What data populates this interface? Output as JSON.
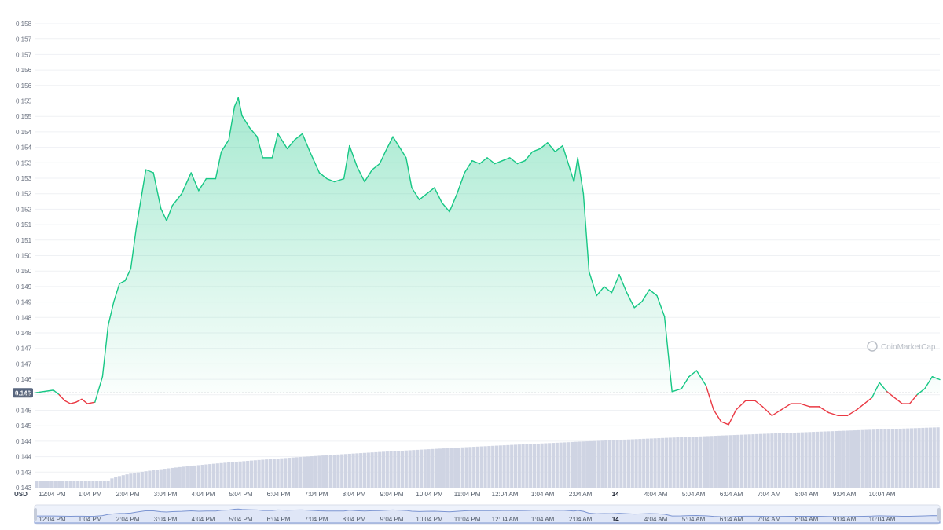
{
  "chart_data": {
    "type": "line",
    "currency_label": "USD",
    "watermark": "CoinMarketCap",
    "y_axis_ticks": [
      "0.158",
      "0.157",
      "0.157",
      "0.156",
      "0.156",
      "0.155",
      "0.155",
      "0.154",
      "0.154",
      "0.153",
      "0.153",
      "0.152",
      "0.152",
      "0.151",
      "0.151",
      "0.150",
      "0.150",
      "0.149",
      "0.149",
      "0.148",
      "0.148",
      "0.147",
      "0.147",
      "0.146",
      "0.146",
      "0.145",
      "0.145",
      "0.144",
      "0.144",
      "0.143",
      "0.143"
    ],
    "ylim": [
      0.1428,
      0.1583
    ],
    "reference_price": 0.14596,
    "reference_label": "0.146",
    "x_tick_labels": [
      "12:04 PM",
      "1:04 PM",
      "2:04 PM",
      "3:04 PM",
      "4:04 PM",
      "5:04 PM",
      "6:04 PM",
      "7:04 PM",
      "8:04 PM",
      "9:04 PM",
      "10:04 PM",
      "11:04 PM",
      "12:04 AM",
      "1:04 AM",
      "2:04 AM",
      "14",
      "4:04 AM",
      "5:04 AM",
      "6:04 AM",
      "7:04 AM",
      "8:04 AM",
      "9:04 AM",
      "10:04 AM"
    ],
    "x_tick_hours": [
      0.07,
      1.07,
      2.07,
      3.07,
      4.07,
      5.07,
      6.07,
      7.07,
      8.07,
      9.07,
      10.07,
      11.07,
      12.07,
      13.07,
      14.07,
      15.0,
      16.07,
      17.07,
      18.07,
      19.07,
      20.07,
      21.07,
      22.07
    ],
    "x_range_hours": [
      -0.4,
      23.6
    ],
    "series": [
      {
        "type": "line",
        "up_color": "#16c784",
        "down_color": "#ea3943",
        "points": [
          [
            -0.4,
            0.14596
          ],
          [
            0.1,
            0.14605
          ],
          [
            0.25,
            0.1459
          ],
          [
            0.4,
            0.1457
          ],
          [
            0.55,
            0.1456
          ],
          [
            0.7,
            0.14565
          ],
          [
            0.85,
            0.14575
          ],
          [
            1.0,
            0.1456
          ],
          [
            1.2,
            0.14565
          ],
          [
            1.4,
            0.1465
          ],
          [
            1.55,
            0.1482
          ],
          [
            1.7,
            0.149
          ],
          [
            1.85,
            0.1496
          ],
          [
            2.0,
            0.1497
          ],
          [
            2.15,
            0.1501
          ],
          [
            2.3,
            0.1515
          ],
          [
            2.55,
            0.1534
          ],
          [
            2.75,
            0.1533
          ],
          [
            2.95,
            0.1521
          ],
          [
            3.1,
            0.1517
          ],
          [
            3.25,
            0.1522
          ],
          [
            3.5,
            0.1526
          ],
          [
            3.75,
            0.1533
          ],
          [
            3.95,
            0.1527
          ],
          [
            4.15,
            0.1531
          ],
          [
            4.4,
            0.1531
          ],
          [
            4.55,
            0.154
          ],
          [
            4.75,
            0.1544
          ],
          [
            4.9,
            0.1555
          ],
          [
            5.0,
            0.1558
          ],
          [
            5.1,
            0.1552
          ],
          [
            5.3,
            0.1548
          ],
          [
            5.5,
            0.1545
          ],
          [
            5.65,
            0.1538
          ],
          [
            5.9,
            0.1538
          ],
          [
            6.05,
            0.1546
          ],
          [
            6.3,
            0.1541
          ],
          [
            6.5,
            0.1544
          ],
          [
            6.7,
            0.1546
          ],
          [
            6.9,
            0.154
          ],
          [
            7.15,
            0.1533
          ],
          [
            7.35,
            0.1531
          ],
          [
            7.55,
            0.153
          ],
          [
            7.8,
            0.1531
          ],
          [
            7.95,
            0.1542
          ],
          [
            8.15,
            0.1535
          ],
          [
            8.35,
            0.153
          ],
          [
            8.55,
            0.1534
          ],
          [
            8.75,
            0.1536
          ],
          [
            8.9,
            0.154
          ],
          [
            9.1,
            0.1545
          ],
          [
            9.3,
            0.1541
          ],
          [
            9.45,
            0.1538
          ],
          [
            9.6,
            0.1528
          ],
          [
            9.8,
            0.1524
          ],
          [
            10.0,
            0.1526
          ],
          [
            10.2,
            0.1528
          ],
          [
            10.4,
            0.1523
          ],
          [
            10.6,
            0.152
          ],
          [
            10.8,
            0.1526
          ],
          [
            11.0,
            0.1533
          ],
          [
            11.2,
            0.1537
          ],
          [
            11.4,
            0.1536
          ],
          [
            11.6,
            0.1538
          ],
          [
            11.8,
            0.1536
          ],
          [
            12.0,
            0.1537
          ],
          [
            12.2,
            0.1538
          ],
          [
            12.4,
            0.1536
          ],
          [
            12.6,
            0.1537
          ],
          [
            12.8,
            0.154
          ],
          [
            13.0,
            0.1541
          ],
          [
            13.2,
            0.1543
          ],
          [
            13.4,
            0.154
          ],
          [
            13.6,
            0.1542
          ],
          [
            13.8,
            0.1534
          ],
          [
            13.9,
            0.153
          ],
          [
            14.0,
            0.1538
          ],
          [
            14.15,
            0.1526
          ],
          [
            14.3,
            0.15
          ],
          [
            14.5,
            0.1492
          ],
          [
            14.7,
            0.1495
          ],
          [
            14.9,
            0.1493
          ],
          [
            15.1,
            0.1499
          ],
          [
            15.3,
            0.1493
          ],
          [
            15.5,
            0.1488
          ],
          [
            15.7,
            0.149
          ],
          [
            15.9,
            0.1494
          ],
          [
            16.1,
            0.1492
          ],
          [
            16.3,
            0.1485
          ],
          [
            16.5,
            0.146
          ],
          [
            16.75,
            0.1461
          ],
          [
            16.95,
            0.1465
          ],
          [
            17.15,
            0.1467
          ],
          [
            17.4,
            0.1462
          ],
          [
            17.6,
            0.1454
          ],
          [
            17.8,
            0.145
          ],
          [
            18.0,
            0.1449
          ],
          [
            18.2,
            0.1454
          ],
          [
            18.45,
            0.1457
          ],
          [
            18.7,
            0.1457
          ],
          [
            18.9,
            0.1455
          ],
          [
            19.15,
            0.1452
          ],
          [
            19.4,
            0.1454
          ],
          [
            19.65,
            0.1456
          ],
          [
            19.9,
            0.1456
          ],
          [
            20.15,
            0.1455
          ],
          [
            20.4,
            0.1455
          ],
          [
            20.65,
            0.1453
          ],
          [
            20.9,
            0.1452
          ],
          [
            21.15,
            0.1452
          ],
          [
            21.4,
            0.1454
          ],
          [
            21.6,
            0.1456
          ],
          [
            21.8,
            0.1458
          ],
          [
            22.0,
            0.1463
          ],
          [
            22.2,
            0.146
          ],
          [
            22.4,
            0.1458
          ],
          [
            22.6,
            0.1456
          ],
          [
            22.8,
            0.1456
          ],
          [
            23.0,
            0.1459
          ],
          [
            23.2,
            0.1461
          ],
          [
            23.4,
            0.1465
          ],
          [
            23.6,
            0.1464
          ]
        ]
      },
      {
        "type": "bar",
        "name": "volume",
        "color": "#cfd4e3",
        "values_start": 0.14302,
        "values_end": 0.14481,
        "x_start": -0.4,
        "x_end": 23.6,
        "step_hours": 0.1
      }
    ],
    "grid": true,
    "legend": "none"
  }
}
